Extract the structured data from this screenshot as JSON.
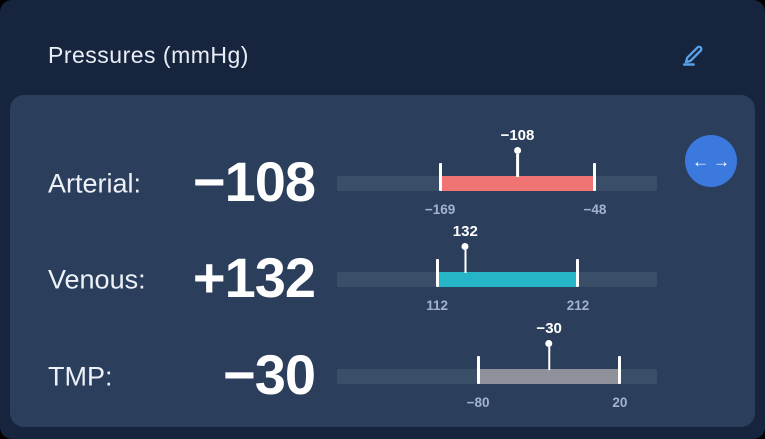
{
  "header": {
    "title": "Pressures (mmHg)"
  },
  "nav": {
    "left": "←",
    "right": "→"
  },
  "colors": {
    "card_bg": "#16253d",
    "panel_bg": "#2b3e5c",
    "track": "#3b4e68",
    "accent_blue": "#3b79df",
    "edit_icon_blue": "#57a0e8",
    "arterial": "#f17474",
    "venous": "#25b5c6",
    "tmp": "#8e9199",
    "range_text": "#a2b3cd"
  },
  "gauges": [
    {
      "id": "arterial",
      "label": "Arterial:",
      "value": "−108",
      "marker_label": "−108",
      "min_label": "−169",
      "max_label": "−48",
      "color": "#f17474",
      "segment_start_pct": 32.2,
      "segment_end_pct": 80.6,
      "marker_pct": 56.4
    },
    {
      "id": "venous",
      "label": "Venous:",
      "value": "+132",
      "marker_label": "132",
      "min_label": "112",
      "max_label": "212",
      "color": "#25b5c6",
      "segment_start_pct": 31.3,
      "segment_end_pct": 75.3,
      "marker_pct": 40.1
    },
    {
      "id": "tmp",
      "label": "TMP:",
      "value": "−30",
      "marker_label": "−30",
      "min_label": "−80",
      "max_label": "20",
      "color": "#8e9199",
      "segment_start_pct": 44.1,
      "segment_end_pct": 88.4,
      "marker_pct": 66.3
    }
  ]
}
